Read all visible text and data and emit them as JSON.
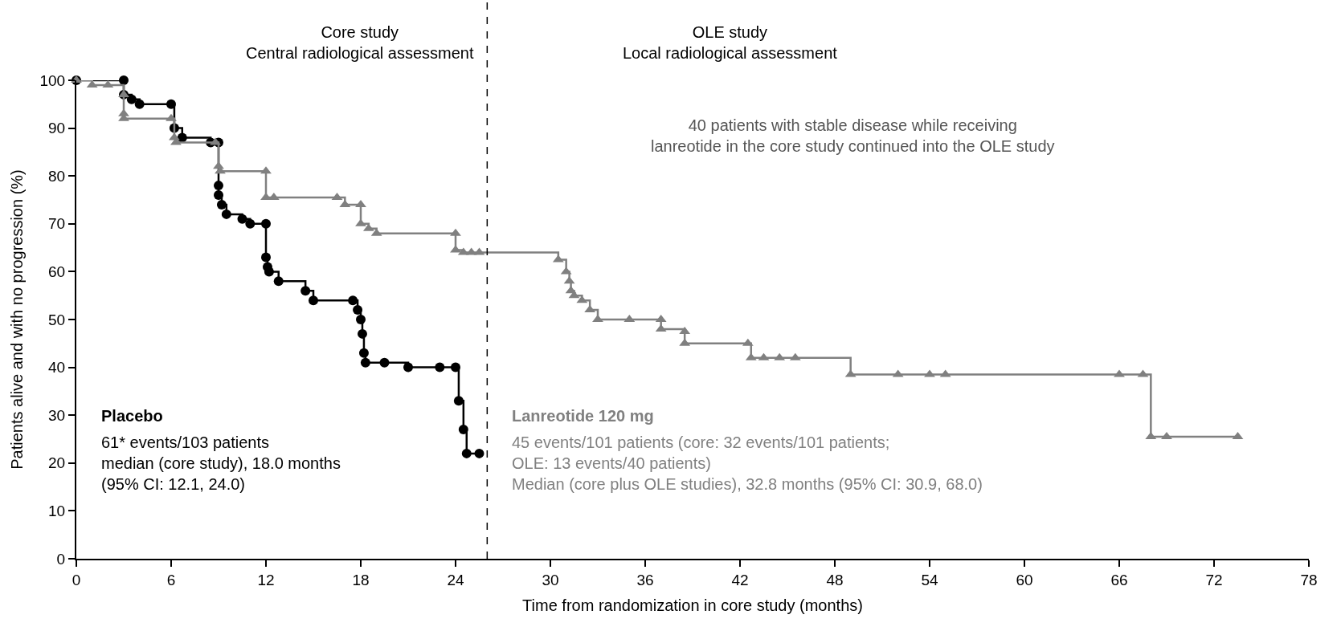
{
  "chart_data": {
    "type": "step",
    "xlabel": "Time from randomization in core study (months)",
    "ylabel": "Patients alive and with no progression (%)",
    "xlim": [
      0,
      78
    ],
    "xticks": [
      0,
      6,
      12,
      18,
      24,
      30,
      36,
      42,
      48,
      54,
      60,
      66,
      72,
      78
    ],
    "ylim": [
      0,
      100
    ],
    "yticks": [
      0,
      10,
      20,
      30,
      40,
      50,
      60,
      70,
      80,
      90,
      100
    ],
    "line_style": "solid",
    "series": [
      {
        "color": "#000000",
        "marker": "circle",
        "x": [
          0,
          3,
          3,
          3.5,
          4,
          6,
          6.2,
          6.7,
          8.5,
          9,
          9,
          9,
          9.2,
          9.5,
          10.5,
          11,
          12,
          12,
          12.1,
          12.2,
          12.8,
          14.5,
          15,
          17.5,
          17.8,
          18,
          18.1,
          18.2,
          18.3,
          19.5,
          21,
          23,
          24,
          24.2,
          24.5,
          24.7,
          25.5
        ],
        "values": [
          100,
          100,
          97,
          96,
          95,
          95,
          90,
          88,
          87,
          87,
          78,
          76,
          74,
          72,
          71,
          70,
          70,
          63,
          61,
          60,
          58,
          56,
          54,
          54,
          52,
          50,
          47,
          43,
          41,
          41,
          40,
          40,
          40,
          33,
          27,
          22,
          22
        ]
      },
      {
        "color": "#808080",
        "marker": "triangle",
        "x": [
          0,
          1,
          2,
          3,
          3,
          3,
          6,
          6.2,
          6.3,
          8.8,
          9,
          9.1,
          12,
          12,
          12.5,
          16.5,
          17,
          18,
          18,
          18.5,
          19,
          24,
          24,
          24.5,
          25,
          25.5,
          30.5,
          31,
          31.2,
          31.3,
          31.5,
          32,
          32.5,
          33,
          35,
          37,
          37,
          38.5,
          38.5,
          42.5,
          42.7,
          43.5,
          44.5,
          45.5,
          49,
          52,
          54,
          55,
          66,
          67.5,
          68,
          69,
          73.5
        ],
        "values": [
          100,
          99,
          99,
          97,
          93,
          92,
          92,
          88,
          87,
          87,
          82,
          81,
          81,
          75.5,
          75.5,
          75.5,
          74,
          74,
          70,
          69,
          68,
          68,
          64.5,
          64,
          64,
          64,
          62.5,
          60,
          58,
          56,
          55,
          54,
          52,
          50,
          50,
          50,
          48,
          47.5,
          45,
          45,
          42,
          42,
          42,
          42,
          38.5,
          38.5,
          38.5,
          38.5,
          38.5,
          38.5,
          25.5,
          25.5,
          25.5
        ]
      }
    ],
    "ref_lines": [
      {
        "axis": "x",
        "value": 26,
        "color": "#000000",
        "line_style": "dashed"
      }
    ],
    "annotations": [
      "Core study\nCentral radiological assessment",
      "OLE study\nLocal radiological assessment",
      "40 patients with stable disease while receiving\nlanreotide in the core study continued into the OLE study",
      "Placebo",
      "61* events/103 patients\nmedian (core study), 18.0 months\n(95% CI: 12.1, 24.0)",
      "Lanreotide 120 mg",
      "45 events/101 patients (core: 32 events/101 patients;\nOLE: 13 events/40 patients)\nMedian (core plus OLE studies), 32.8 months (95% CI: 30.9, 68.0)"
    ]
  }
}
